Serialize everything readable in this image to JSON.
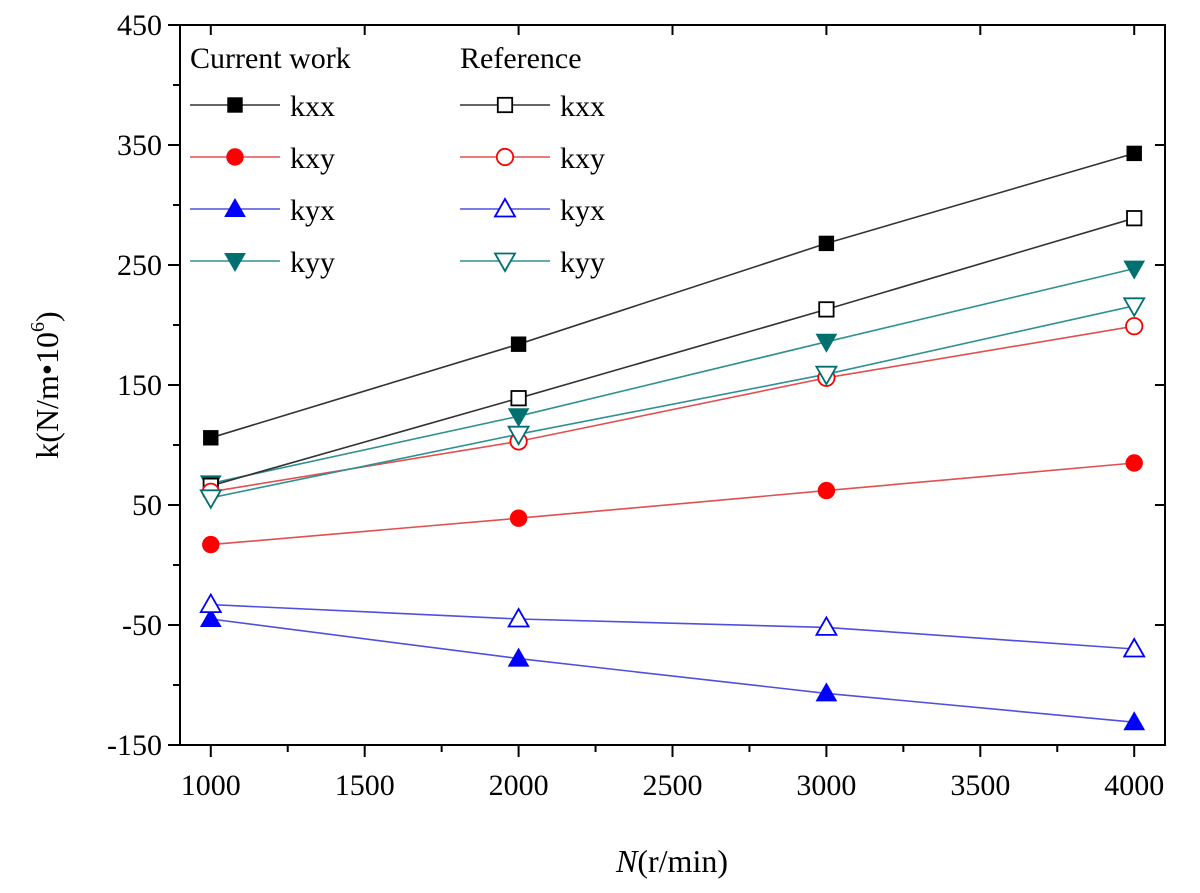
{
  "chart_data": {
    "type": "line",
    "title": "",
    "xlabel": {
      "italic": "N",
      "rest": "(r/min)"
    },
    "ylabel": {
      "base": "k(N/m•10",
      "sup": "6",
      "close": ")"
    },
    "xlim": [
      900,
      4100
    ],
    "ylim": [
      -150,
      450
    ],
    "x_ticks": [
      1000,
      1500,
      2000,
      2500,
      3000,
      3500,
      4000
    ],
    "y_ticks": [
      -150,
      -50,
      50,
      150,
      250,
      350,
      450
    ],
    "x": [
      1000,
      2000,
      3000,
      4000
    ],
    "grid": false,
    "legend_position": "top-left",
    "legend_groups": [
      "Current work",
      "Reference"
    ],
    "series": [
      {
        "name": "kxx",
        "group": "Current work",
        "marker": "square",
        "filled": true,
        "color": "#000000",
        "line_color": "#333333",
        "values": [
          106,
          184,
          268,
          343
        ]
      },
      {
        "name": "kxy",
        "group": "Current work",
        "marker": "circle",
        "filled": true,
        "color": "#ff0000",
        "line_color": "#e05050",
        "values": [
          17,
          39,
          62,
          85
        ]
      },
      {
        "name": "kyx",
        "group": "Current work",
        "marker": "triangle-up",
        "filled": true,
        "color": "#0000ff",
        "line_color": "#5050e0",
        "values": [
          -45,
          -78,
          -107,
          -131
        ]
      },
      {
        "name": "kyy",
        "group": "Current work",
        "marker": "triangle-down",
        "filled": true,
        "color": "#007070",
        "line_color": "#309090",
        "values": [
          68,
          124,
          186,
          247
        ]
      },
      {
        "name": "kxx",
        "group": "Reference",
        "marker": "square",
        "filled": false,
        "color": "#000000",
        "line_color": "#333333",
        "values": [
          66,
          139,
          213,
          289
        ]
      },
      {
        "name": "kxy",
        "group": "Reference",
        "marker": "circle",
        "filled": false,
        "color": "#ff0000",
        "line_color": "#e05050",
        "values": [
          61,
          103,
          156,
          199
        ]
      },
      {
        "name": "kyx",
        "group": "Reference",
        "marker": "triangle-up",
        "filled": false,
        "color": "#0000ff",
        "line_color": "#5050e0",
        "values": [
          -33,
          -45,
          -52,
          -70
        ]
      },
      {
        "name": "kyy",
        "group": "Reference",
        "marker": "triangle-down",
        "filled": false,
        "color": "#007070",
        "line_color": "#309090",
        "values": [
          56,
          109,
          159,
          216
        ]
      }
    ]
  }
}
